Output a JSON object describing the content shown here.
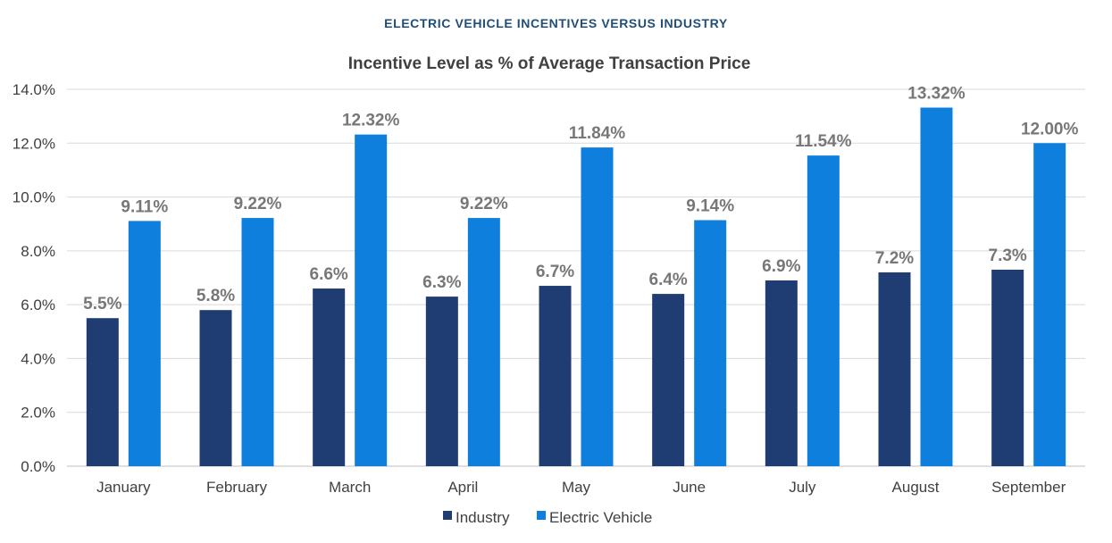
{
  "header": {
    "supertitle": "ELECTRIC VEHICLE INCENTIVES VERSUS INDUSTRY"
  },
  "colors": {
    "industry": "#1f3d72",
    "ev": "#0f7fde",
    "gridline": "#d9d9d9",
    "label": "#777777",
    "axis_text": "#404040",
    "supertitle": "#1f4e79"
  },
  "chart_data": {
    "type": "bar",
    "title": "Incentive Level as % of Average Transaction Price",
    "xlabel": "",
    "ylabel": "",
    "categories": [
      "January",
      "February",
      "March",
      "April",
      "May",
      "June",
      "July",
      "August",
      "September"
    ],
    "series": [
      {
        "name": "Industry",
        "values": [
          5.5,
          5.8,
          6.6,
          6.3,
          6.7,
          6.4,
          6.9,
          7.2,
          7.3
        ],
        "labels": [
          "5.5%",
          "5.8%",
          "6.6%",
          "6.3%",
          "6.7%",
          "6.4%",
          "6.9%",
          "7.2%",
          "7.3%"
        ]
      },
      {
        "name": "Electric Vehicle",
        "values": [
          9.11,
          9.22,
          12.32,
          9.22,
          11.84,
          9.14,
          11.54,
          13.32,
          12.0
        ],
        "labels": [
          "9.11%",
          "9.22%",
          "12.32%",
          "9.22%",
          "11.84%",
          "9.14%",
          "11.54%",
          "13.32%",
          "12.00%"
        ]
      }
    ],
    "ylim": [
      0,
      14
    ],
    "yticks": [
      "0.0%",
      "2.0%",
      "4.0%",
      "6.0%",
      "8.0%",
      "10.0%",
      "12.0%",
      "14.0%"
    ],
    "grid": true,
    "legend_position": "bottom"
  }
}
